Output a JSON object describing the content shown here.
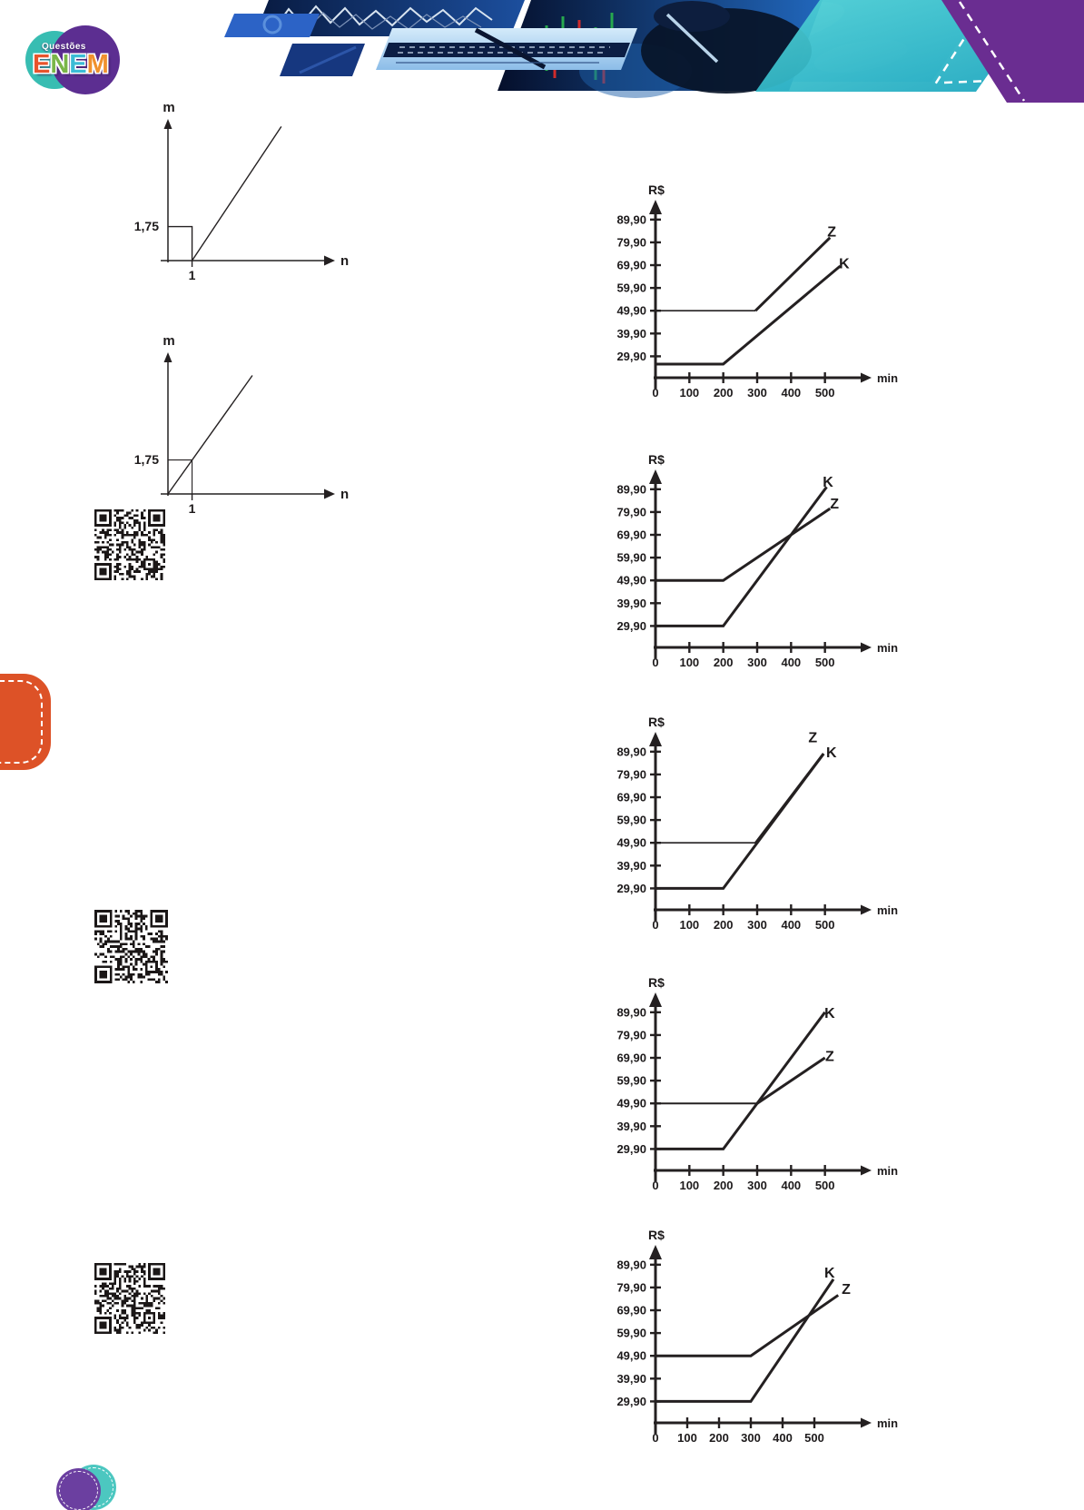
{
  "logo": {
    "top_text": "Questões",
    "brand_letters": [
      {
        "char": "E",
        "color": "#e8542c"
      },
      {
        "char": "N",
        "color": "#7ab648"
      },
      {
        "char": "E",
        "color": "#3bbcd6"
      },
      {
        "char": "M",
        "color": "#f0912d"
      }
    ],
    "circle_back_color": "#38bdb2",
    "circle_front_color": "#5c2e91"
  },
  "decor": {
    "side_tab_color": "#dd5227",
    "header_purple": "#6a2d91",
    "header_teal": "#2fbdc9",
    "bottom_circle_front": "#6b3fa0",
    "bottom_circle_back": "#4cc7c0",
    "ink_color": "#242021"
  },
  "qr_codes": [
    {
      "name": "qr-code-1"
    },
    {
      "name": "qr-code-2"
    },
    {
      "name": "qr-code-3"
    }
  ],
  "chart_data": [
    {
      "id": "graph-m-n-step",
      "type": "line",
      "kind": "mn",
      "xlabel": "n",
      "ylabel": "m",
      "xlim": [
        0,
        6.4
      ],
      "ylim": [
        0,
        7.2
      ],
      "xticks": [
        {
          "v": 1,
          "label": "1"
        }
      ],
      "yticks": [
        {
          "v": 1.75,
          "label": "1,75"
        }
      ],
      "series": [
        {
          "name": "step-segment",
          "points": [
            [
              0,
              1.75
            ],
            [
              1,
              1.75
            ],
            [
              1,
              0
            ]
          ],
          "width": 1.4
        },
        {
          "name": "rising-ray",
          "points": [
            [
              1,
              0
            ],
            [
              4.7,
              6.9
            ]
          ],
          "width": 1.4
        }
      ]
    },
    {
      "id": "graph-m-n-linear",
      "type": "line",
      "kind": "mn",
      "xlabel": "n",
      "ylabel": "m",
      "xlim": [
        0,
        6.4
      ],
      "ylim": [
        0,
        7.2
      ],
      "xticks": [
        {
          "v": 1,
          "label": "1"
        }
      ],
      "yticks": [
        {
          "v": 1.75,
          "label": "1,75"
        }
      ],
      "series": [
        {
          "name": "guide",
          "points": [
            [
              0,
              1.75
            ],
            [
              1,
              1.75
            ],
            [
              1,
              0
            ]
          ],
          "width": 1.1
        },
        {
          "name": "line-through-origin",
          "points": [
            [
              0,
              0
            ],
            [
              3.5,
              6.1
            ]
          ],
          "width": 1.4
        }
      ]
    },
    {
      "id": "plans-graph-1",
      "type": "line",
      "kind": "rs",
      "xlabel": "min",
      "ylabel": "R$",
      "xlim": [
        0,
        600
      ],
      "ylim": [
        20.5,
        97
      ],
      "xticks": [
        {
          "v": 0,
          "label": "0"
        },
        {
          "v": 100,
          "label": "100"
        },
        {
          "v": 200,
          "label": "200"
        },
        {
          "v": 300,
          "label": "300"
        },
        {
          "v": 400,
          "label": "400"
        },
        {
          "v": 500,
          "label": "500"
        }
      ],
      "yticks": [
        {
          "v": 29.9,
          "label": "29,90"
        },
        {
          "v": 39.9,
          "label": "39,90"
        },
        {
          "v": 49.9,
          "label": "49,90"
        },
        {
          "v": 59.9,
          "label": "59,90"
        },
        {
          "v": 69.9,
          "label": "69,90"
        },
        {
          "v": 79.9,
          "label": "79,90"
        },
        {
          "v": 89.9,
          "label": "89,90"
        }
      ],
      "series": [
        {
          "name": "Z",
          "points": [
            [
              0,
              49.9
            ],
            [
              295,
              49.9
            ]
          ],
          "width": 1.7
        },
        {
          "name": "Z",
          "points": [
            [
              295,
              49.9
            ],
            [
              515,
              82
            ]
          ],
          "width": 3,
          "label": "Z",
          "label_at": [
            520,
            84.5
          ]
        },
        {
          "name": "K",
          "points": [
            [
              0,
              26.5
            ],
            [
              200,
              26.5
            ],
            [
              545,
              69.5
            ]
          ],
          "width": 3,
          "label": "K",
          "label_at": [
            557,
            70.5
          ]
        }
      ]
    },
    {
      "id": "plans-graph-2",
      "type": "line",
      "kind": "rs",
      "xlabel": "min",
      "ylabel": "R$",
      "xlim": [
        0,
        600
      ],
      "ylim": [
        20.5,
        97
      ],
      "xticks": [
        {
          "v": 0,
          "label": "0"
        },
        {
          "v": 100,
          "label": "100"
        },
        {
          "v": 200,
          "label": "200"
        },
        {
          "v": 300,
          "label": "300"
        },
        {
          "v": 400,
          "label": "400"
        },
        {
          "v": 500,
          "label": "500"
        }
      ],
      "yticks": [
        {
          "v": 29.9,
          "label": "29,90"
        },
        {
          "v": 39.9,
          "label": "39,90"
        },
        {
          "v": 49.9,
          "label": "49,90"
        },
        {
          "v": 59.9,
          "label": "59,90"
        },
        {
          "v": 69.9,
          "label": "69,90"
        },
        {
          "v": 79.9,
          "label": "79,90"
        },
        {
          "v": 89.9,
          "label": "89,90"
        }
      ],
      "series": [
        {
          "name": "Z",
          "points": [
            [
              0,
              49.9
            ],
            [
              200,
              49.9
            ],
            [
              515,
              81.4
            ]
          ],
          "width": 3,
          "label": "Z",
          "label_at": [
            528,
            83.5
          ]
        },
        {
          "name": "K",
          "points": [
            [
              0,
              29.9
            ],
            [
              200,
              29.9
            ],
            [
              505,
              90.9
            ]
          ],
          "width": 3,
          "label": "K",
          "label_at": [
            509,
            93
          ]
        }
      ]
    },
    {
      "id": "plans-graph-3",
      "type": "line",
      "kind": "rs",
      "xlabel": "min",
      "ylabel": "R$",
      "xlim": [
        0,
        600
      ],
      "ylim": [
        20.5,
        97
      ],
      "xticks": [
        {
          "v": 0,
          "label": "0"
        },
        {
          "v": 100,
          "label": "100"
        },
        {
          "v": 200,
          "label": "200"
        },
        {
          "v": 300,
          "label": "300"
        },
        {
          "v": 400,
          "label": "400"
        },
        {
          "v": 500,
          "label": "500"
        }
      ],
      "yticks": [
        {
          "v": 29.9,
          "label": "29,90"
        },
        {
          "v": 39.9,
          "label": "39,90"
        },
        {
          "v": 49.9,
          "label": "49,90"
        },
        {
          "v": 59.9,
          "label": "59,90"
        },
        {
          "v": 69.9,
          "label": "69,90"
        },
        {
          "v": 79.9,
          "label": "79,90"
        },
        {
          "v": 89.9,
          "label": "89,90"
        }
      ],
      "series": [
        {
          "name": "Z",
          "points": [
            [
              0,
              49.9
            ],
            [
              296,
              49.9
            ]
          ],
          "width": 1.6
        },
        {
          "name": "Z",
          "points": [
            [
              296,
              49.9
            ],
            [
              496,
              89
            ]
          ],
          "width": 3,
          "label": "Z",
          "label_at": [
            464,
            96
          ]
        },
        {
          "name": "K",
          "points": [
            [
              0,
              29.9
            ],
            [
              200,
              29.9
            ],
            [
              496,
              89
            ]
          ],
          "width": 3,
          "label": "K",
          "label_at": [
            519,
            89.5
          ]
        }
      ]
    },
    {
      "id": "plans-graph-4",
      "type": "line",
      "kind": "rs",
      "xlabel": "min",
      "ylabel": "R$",
      "xlim": [
        0,
        600
      ],
      "ylim": [
        20.5,
        97
      ],
      "xticks": [
        {
          "v": 0,
          "label": "0"
        },
        {
          "v": 100,
          "label": "100"
        },
        {
          "v": 200,
          "label": "200"
        },
        {
          "v": 300,
          "label": "300"
        },
        {
          "v": 400,
          "label": "400"
        },
        {
          "v": 500,
          "label": "500"
        }
      ],
      "yticks": [
        {
          "v": 29.9,
          "label": "29,90"
        },
        {
          "v": 39.9,
          "label": "39,90"
        },
        {
          "v": 49.9,
          "label": "49,90"
        },
        {
          "v": 59.9,
          "label": "59,90"
        },
        {
          "v": 69.9,
          "label": "69,90"
        },
        {
          "v": 79.9,
          "label": "79,90"
        },
        {
          "v": 89.9,
          "label": "89,90"
        }
      ],
      "series": [
        {
          "name": "Z",
          "points": [
            [
              0,
              49.9
            ],
            [
              300,
              49.9
            ]
          ],
          "width": 2
        },
        {
          "name": "Z",
          "points": [
            [
              300,
              49.9
            ],
            [
              500,
              69.9
            ]
          ],
          "width": 3,
          "label": "Z",
          "label_at": [
            514,
            70.5
          ]
        },
        {
          "name": "K",
          "points": [
            [
              0,
              29.9
            ],
            [
              200,
              29.9
            ],
            [
              500,
              89.9
            ]
          ],
          "width": 3,
          "label": "K",
          "label_at": [
            514,
            89.5
          ]
        }
      ]
    },
    {
      "id": "plans-graph-5",
      "type": "line",
      "kind": "rs",
      "xlabel": "min",
      "ylabel": "R$",
      "xlim": [
        0,
        640
      ],
      "ylim": [
        20.5,
        97
      ],
      "xticks": [
        {
          "v": 0,
          "label": "0"
        },
        {
          "v": 100,
          "label": "100"
        },
        {
          "v": 200,
          "label": "200"
        },
        {
          "v": 300,
          "label": "300"
        },
        {
          "v": 400,
          "label": "400"
        },
        {
          "v": 500,
          "label": "500"
        }
      ],
      "yticks": [
        {
          "v": 29.9,
          "label": "29,90"
        },
        {
          "v": 39.9,
          "label": "39,90"
        },
        {
          "v": 49.9,
          "label": "49,90"
        },
        {
          "v": 59.9,
          "label": "59,90"
        },
        {
          "v": 69.9,
          "label": "69,90"
        },
        {
          "v": 79.9,
          "label": "79,90"
        },
        {
          "v": 89.9,
          "label": "89,90"
        }
      ],
      "series": [
        {
          "name": "Z",
          "points": [
            [
              0,
              49.9
            ],
            [
              300,
              49.9
            ],
            [
              575,
              76.5
            ]
          ],
          "width": 3,
          "label": "Z",
          "label_at": [
            600,
            79
          ]
        },
        {
          "name": "K",
          "points": [
            [
              0,
              29.9
            ],
            [
              300,
              29.9
            ],
            [
              560,
              83.5
            ]
          ],
          "width": 3,
          "label": "K",
          "label_at": [
            548,
            86.2
          ]
        }
      ]
    }
  ]
}
